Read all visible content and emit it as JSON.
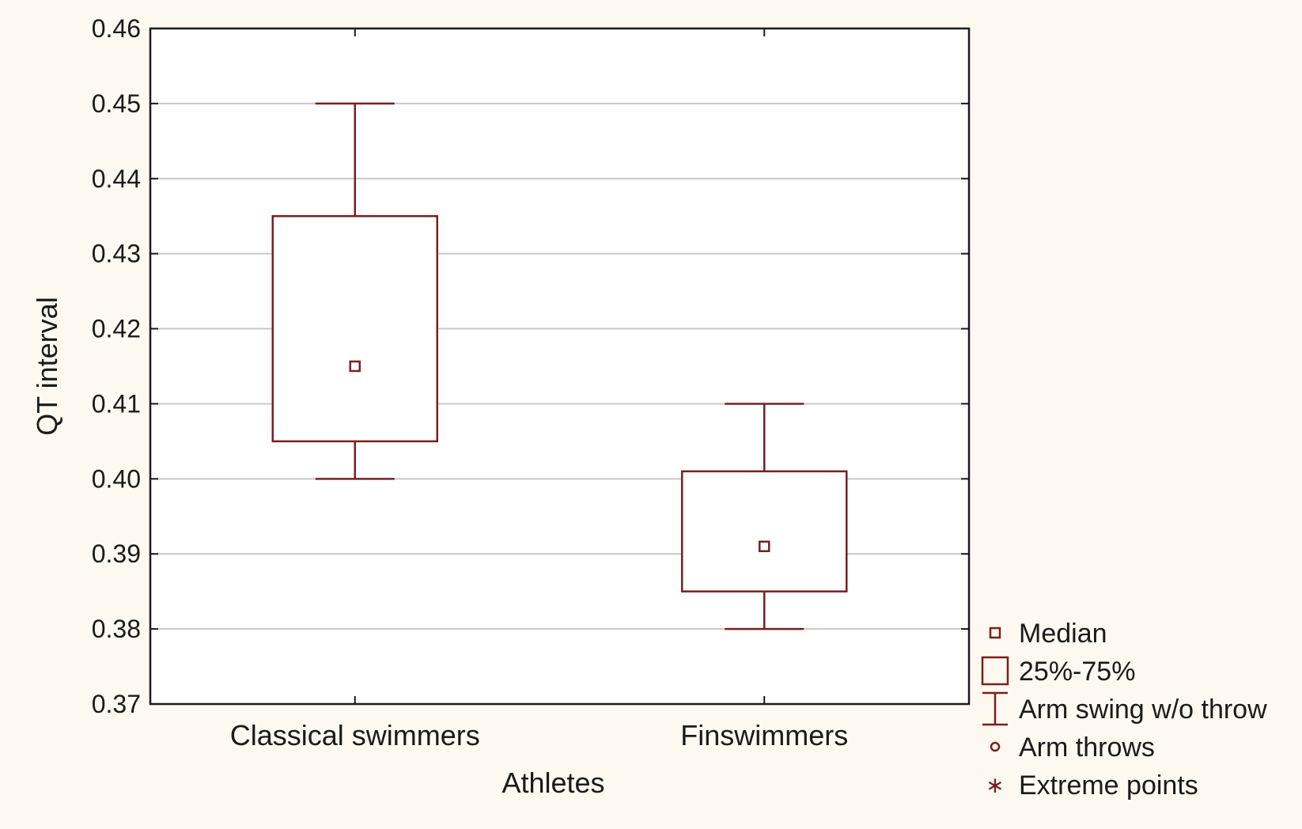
{
  "chart_data": {
    "type": "boxplot",
    "title": "",
    "xlabel": "Athletes",
    "ylabel": "QT interval",
    "ylim": [
      0.37,
      0.46
    ],
    "yticks": [
      "0.37",
      "0.38",
      "0.39",
      "0.40",
      "0.41",
      "0.42",
      "0.43",
      "0.44",
      "0.45",
      "0.46"
    ],
    "grid": true,
    "legend_position": "right-bottom",
    "categories": [
      "Classical swimmers",
      "Finswimmers"
    ],
    "series": [
      {
        "category": "Classical swimmers",
        "median": 0.415,
        "q1": 0.405,
        "q3": 0.435,
        "whisker_low": 0.4,
        "whisker_high": 0.45
      },
      {
        "category": "Finswimmers",
        "median": 0.391,
        "q1": 0.385,
        "q3": 0.401,
        "whisker_low": 0.38,
        "whisker_high": 0.41
      }
    ],
    "legend": [
      {
        "symbol": "median-square",
        "label": "Median"
      },
      {
        "symbol": "box",
        "label": "25%-75%"
      },
      {
        "symbol": "whisker",
        "label": "Arm swing w/o throw"
      },
      {
        "symbol": "circle",
        "label": "Arm throws"
      },
      {
        "symbol": "asterisk",
        "label": "Extreme points"
      }
    ],
    "colors": {
      "mark": "#7a1f1f",
      "grid": "#c8c8c8",
      "axis": "#1a1a1a",
      "plot_bg": "#ffffff",
      "page_bg": "#fdf9f0"
    }
  }
}
